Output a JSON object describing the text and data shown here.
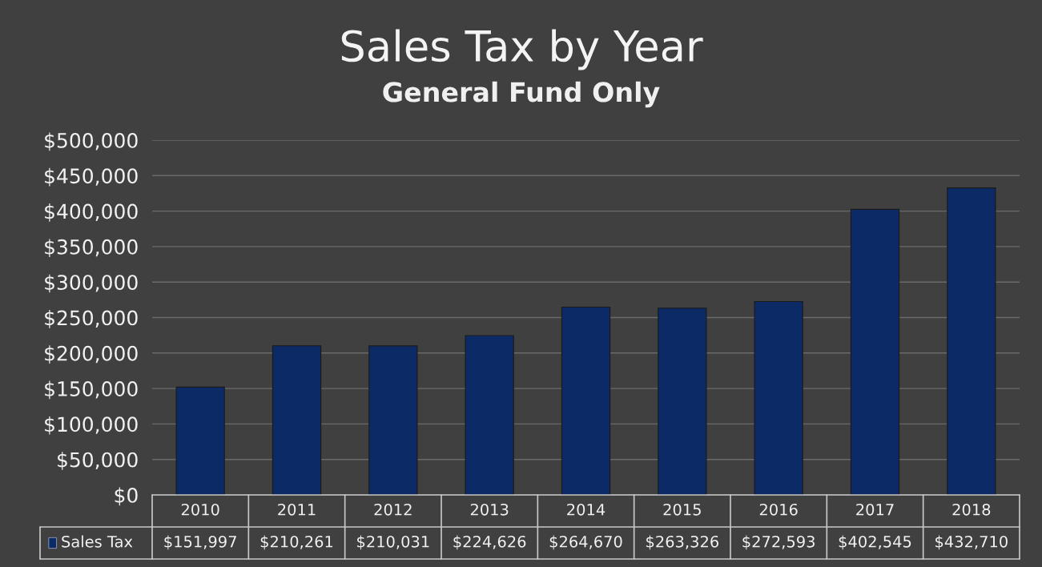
{
  "chart_data": {
    "type": "bar",
    "title": "Sales Tax by Year",
    "subtitle": "General Fund Only",
    "categories": [
      "2010",
      "2011",
      "2012",
      "2013",
      "2014",
      "2015",
      "2016",
      "2017",
      "2018"
    ],
    "series": [
      {
        "name": "Sales Tax",
        "color": "#0b2a66",
        "values": [
          151997,
          210261,
          210031,
          224626,
          264670,
          263326,
          272593,
          402545,
          432710
        ]
      }
    ],
    "ylim": [
      0,
      500000
    ],
    "yticks": [
      {
        "value": 0,
        "label": "$0"
      },
      {
        "value": 50000,
        "label": "$50,000"
      },
      {
        "value": 100000,
        "label": "$100,000"
      },
      {
        "value": 150000,
        "label": "$150,000"
      },
      {
        "value": 200000,
        "label": "$200,000"
      },
      {
        "value": 250000,
        "label": "$250,000"
      },
      {
        "value": 300000,
        "label": "$300,000"
      },
      {
        "value": 350000,
        "label": "$350,000"
      },
      {
        "value": 400000,
        "label": "$400,000"
      },
      {
        "value": 450000,
        "label": "$450,000"
      },
      {
        "value": 500000,
        "label": "$500,000"
      }
    ],
    "grid": "y",
    "value_labels": [
      "$151,997",
      "$210,261",
      "$210,031",
      "$224,626",
      "$264,670",
      "$263,326",
      "$272,593",
      "$402,545",
      "$432,710"
    ]
  }
}
